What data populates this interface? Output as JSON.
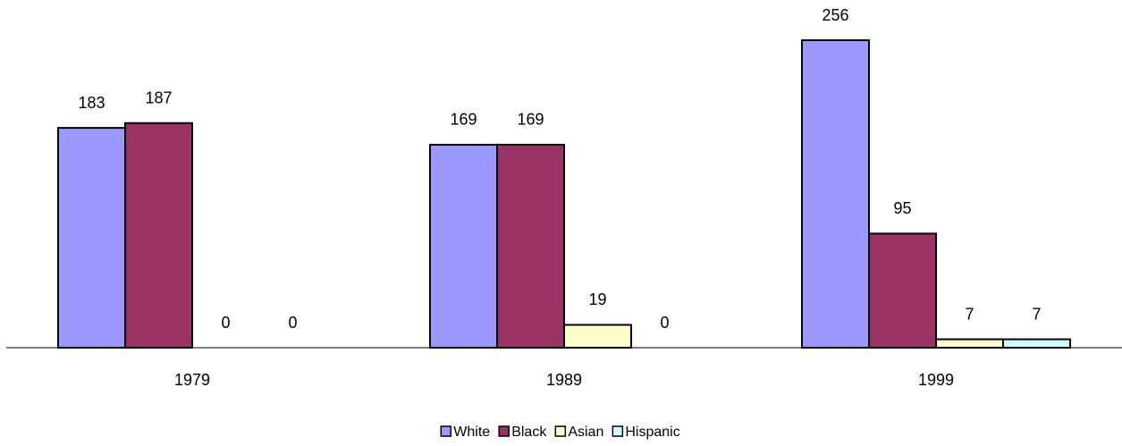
{
  "chart_data": {
    "type": "bar",
    "categories": [
      "1979",
      "1989",
      "1999"
    ],
    "series": [
      {
        "name": "White",
        "color": "#9999ff",
        "values": [
          183,
          169,
          256
        ]
      },
      {
        "name": "Black",
        "color": "#993366",
        "values": [
          187,
          169,
          95
        ]
      },
      {
        "name": "Asian",
        "color": "#ffffcc",
        "values": [
          0,
          19,
          7
        ]
      },
      {
        "name": "Hispanic",
        "color": "#ccffff",
        "values": [
          0,
          0,
          7
        ]
      }
    ]
  }
}
